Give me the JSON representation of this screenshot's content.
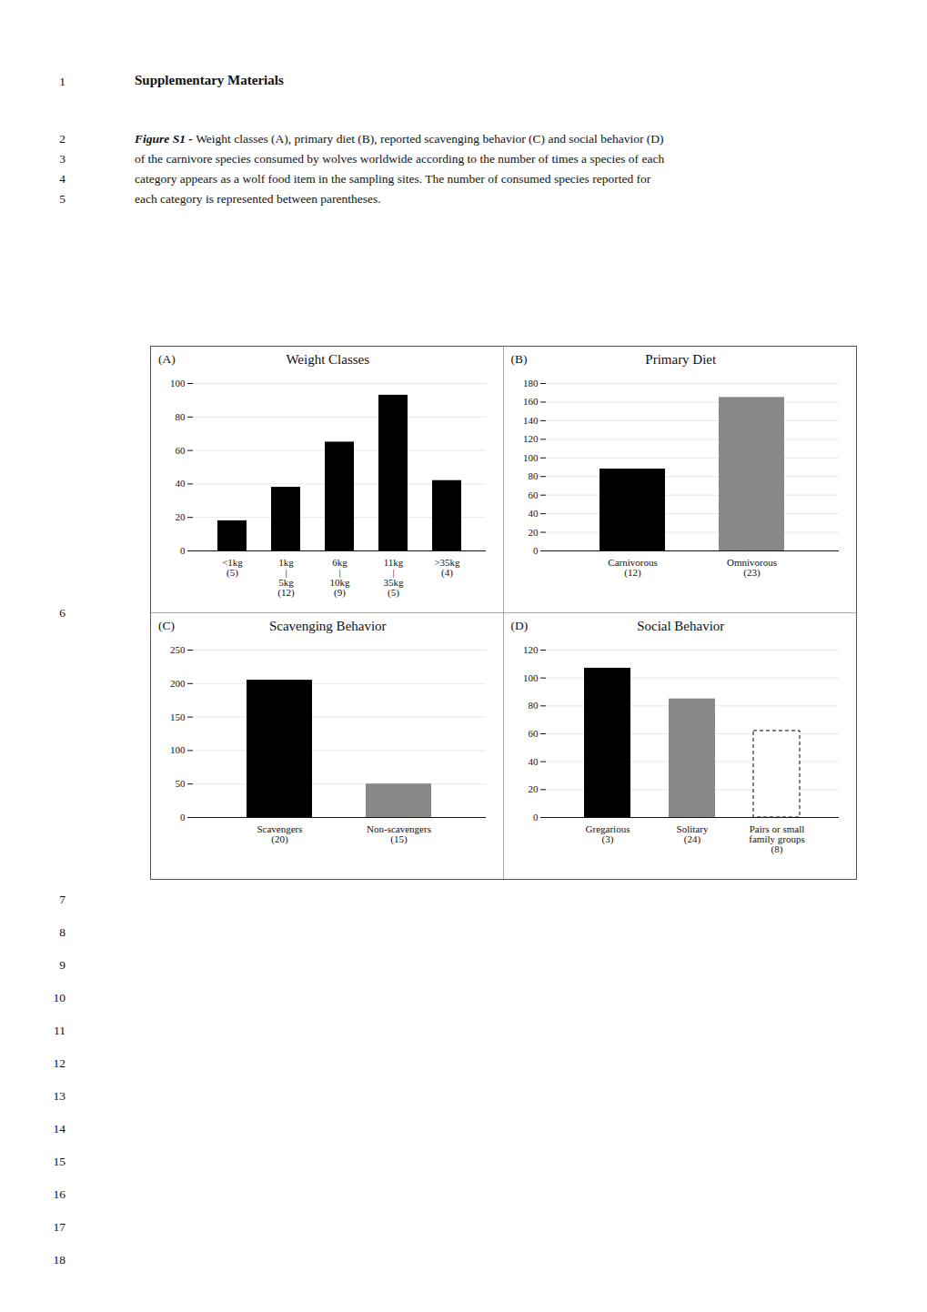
{
  "title": "Supplementary Materials",
  "caption": {
    "bold": "Figure S1 - ",
    "lines": [
      "Weight classes (A), primary diet (B), reported scavenging behavior (C) and social behavior (D)",
      "of the carnivore species consumed by wolves worldwide according to the number of times a species of each",
      "category appears as a wolf food item in the sampling sites. The number of consumed species reported for",
      "each category is represented between parentheses."
    ]
  },
  "annotations": [
    "1",
    "2",
    "3",
    "4",
    "5",
    "6",
    "7",
    "8",
    "9",
    "10",
    "11",
    "12",
    "13",
    "14",
    "15",
    "16",
    "17",
    "18"
  ],
  "chart_data": [
    {
      "type": "bar",
      "title": "Weight Classes",
      "annotations": [
        "(A)"
      ],
      "categories": [
        "<1kg\n(5)",
        "1kg\n|\n5kg\n(12)",
        "6kg\n|\n10kg\n(9)",
        "11kg\n|\n35kg\n(5)",
        ">35kg\n(4)"
      ],
      "values": [
        18,
        38,
        65,
        93,
        42
      ],
      "color": "#000000",
      "ylim": [
        0,
        100
      ],
      "yticks": [
        0,
        20,
        40,
        60,
        80,
        100
      ],
      "grid": true
    },
    {
      "type": "bar",
      "title": "Primary Diet",
      "annotations": [
        "(B)"
      ],
      "categories": [
        "Carnivorous\n(12)",
        "Omnivorous\n(23)"
      ],
      "values": [
        88,
        165
      ],
      "colors": [
        "#000000",
        "#888888"
      ],
      "ylim": [
        0,
        180
      ],
      "yticks": [
        0,
        20,
        40,
        60,
        80,
        100,
        120,
        140,
        160,
        180
      ],
      "grid": true
    },
    {
      "type": "bar",
      "title": "Scavenging Behavior",
      "annotations": [
        "(C)"
      ],
      "categories": [
        "Scavengers\n(20)",
        "Non-scavengers\n(15)"
      ],
      "values": [
        205,
        50
      ],
      "colors": [
        "#000000",
        "#888888"
      ],
      "ylim": [
        0,
        250
      ],
      "yticks": [
        0,
        50,
        100,
        150,
        200,
        250
      ],
      "grid": true
    },
    {
      "type": "bar",
      "title": "Social Behavior",
      "annotations": [
        "(D)"
      ],
      "categories": [
        "Gregarious\n(3)",
        "Solitary\n(24)",
        "Pairs or small\nfamily groups\n(8)"
      ],
      "values": [
        107,
        85,
        62
      ],
      "colors": [
        "#000000",
        "#888888",
        "#ffffff"
      ],
      "ylim": [
        0,
        120
      ],
      "yticks": [
        0,
        20,
        40,
        60,
        80,
        100,
        120
      ],
      "grid": true
    }
  ]
}
